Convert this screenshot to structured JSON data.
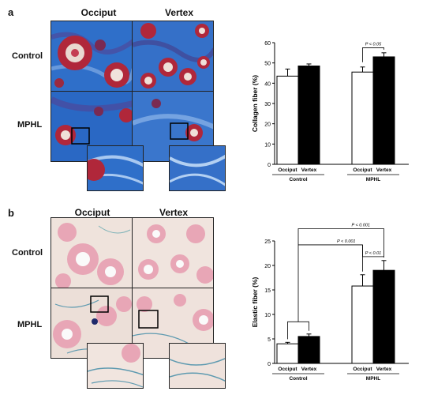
{
  "panels": [
    {
      "letter": "a",
      "columns": [
        "Occiput",
        "Vertex"
      ],
      "rows": [
        "Control",
        "MPHL"
      ]
    },
    {
      "letter": "b",
      "columns": [
        "Occiput",
        "Vertex"
      ],
      "rows": [
        "Control",
        "MPHL"
      ]
    }
  ],
  "colors": {
    "trichrome_blue": "#2f6fc9",
    "trichrome_red": "#b0273a",
    "elastic_pink": "#e8a6b6",
    "elastic_bg": "#efe3dc",
    "bar_control": "#ffffff",
    "bar_mphl": "#000000"
  },
  "chart_data": [
    {
      "type": "bar",
      "ylabel": "Collagen fiber (%)",
      "ylim": [
        0,
        60
      ],
      "yticks": [
        0,
        10,
        20,
        30,
        40,
        50,
        60
      ],
      "groups": [
        "Control",
        "MPHL"
      ],
      "categories": [
        "Occiput",
        "Vertex"
      ],
      "series": [
        {
          "group": "Control",
          "values": [
            43.5,
            48.5
          ],
          "errors": [
            3.5,
            1.0
          ]
        },
        {
          "group": "MPHL",
          "values": [
            45.5,
            53
          ],
          "errors": [
            2.5,
            2.0
          ]
        }
      ],
      "annotations": [
        {
          "text": "P < 0.05",
          "from": "MPHL.Occiput",
          "to": "MPHL.Vertex"
        }
      ]
    },
    {
      "type": "bar",
      "ylabel": "Elastic fiber (%)",
      "ylim": [
        0,
        25
      ],
      "yticks": [
        0,
        5,
        10,
        15,
        20,
        25
      ],
      "groups": [
        "Control",
        "MPHL"
      ],
      "categories": [
        "Occiput",
        "Vertex"
      ],
      "series": [
        {
          "group": "Control",
          "values": [
            4,
            5.5
          ],
          "errors": [
            0.3,
            0.5
          ]
        },
        {
          "group": "MPHL",
          "values": [
            15.8,
            19
          ],
          "errors": [
            2.3,
            2.0
          ]
        }
      ],
      "annotations": [
        {
          "text": "P < 0.001",
          "from": "Control",
          "to": "MPHL.Vertex"
        },
        {
          "text": "P < 0.001",
          "from": "Control",
          "to": "MPHL.Occiput"
        },
        {
          "text": "P < 0.01",
          "from": "MPHL.Occiput",
          "to": "MPHL.Vertex"
        }
      ]
    }
  ]
}
